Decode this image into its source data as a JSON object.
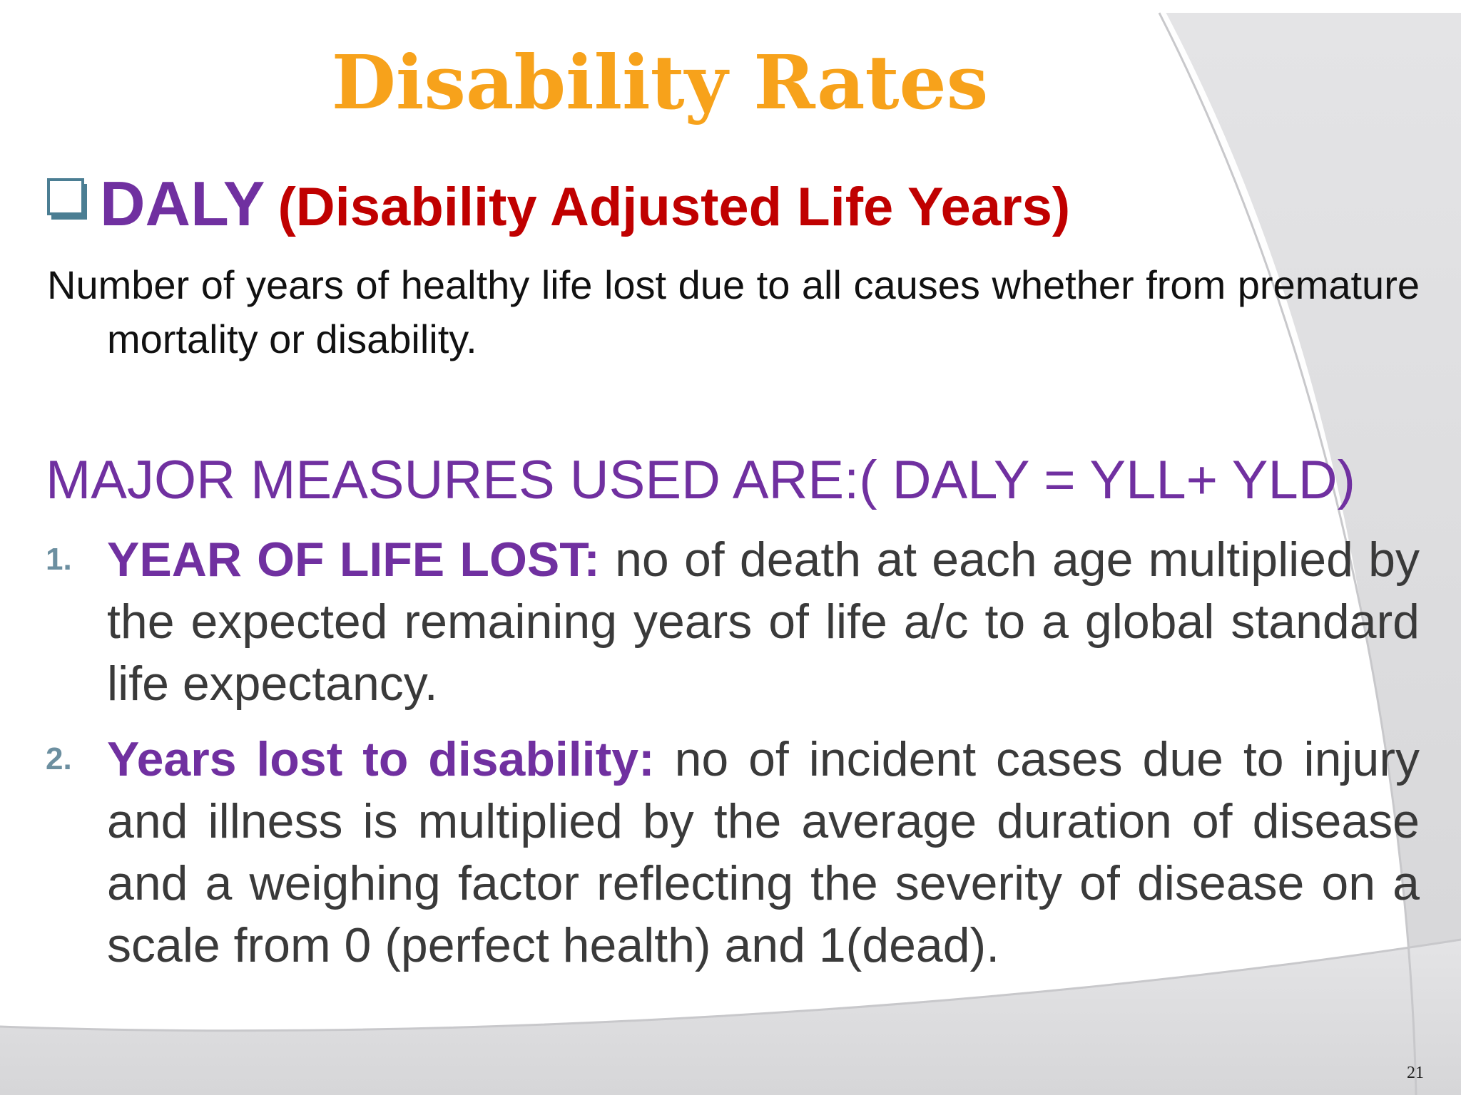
{
  "slide": {
    "title": "Disability Rates",
    "daly_abbr": "DALY",
    "daly_full": "(Disability Adjusted  Life Years)",
    "definition": "Number of years of healthy life lost due to all causes whether from premature mortality or disability.",
    "measures_heading": "MAJOR MEASURES USED ARE:( DALY = YLL+ YLD)",
    "measures": [
      {
        "number": "1.",
        "label": "YEAR OF LIFE LOST:",
        "text": " no of death at each age multiplied by the expected remaining years of life a/c to a global standard life expectancy."
      },
      {
        "number": "2.",
        "label": "Years lost to disability:",
        "text": " no of incident cases due to injury and illness is multiplied by the average duration of disease and a weighing factor reflecting the severity of disease on a scale from 0 (perfect health) and 1(dead)."
      }
    ],
    "page_number": "21"
  },
  "icons": {
    "bullet": "checkbox-icon"
  },
  "colors": {
    "title": "#f7a21b",
    "daly_abbr": "#7030a0",
    "daly_full": "#c00000",
    "measures_heading": "#7030a0",
    "measure_label": "#7030a0",
    "measure_number": "#6c8fa0",
    "body_text": "#3a3a3a"
  }
}
